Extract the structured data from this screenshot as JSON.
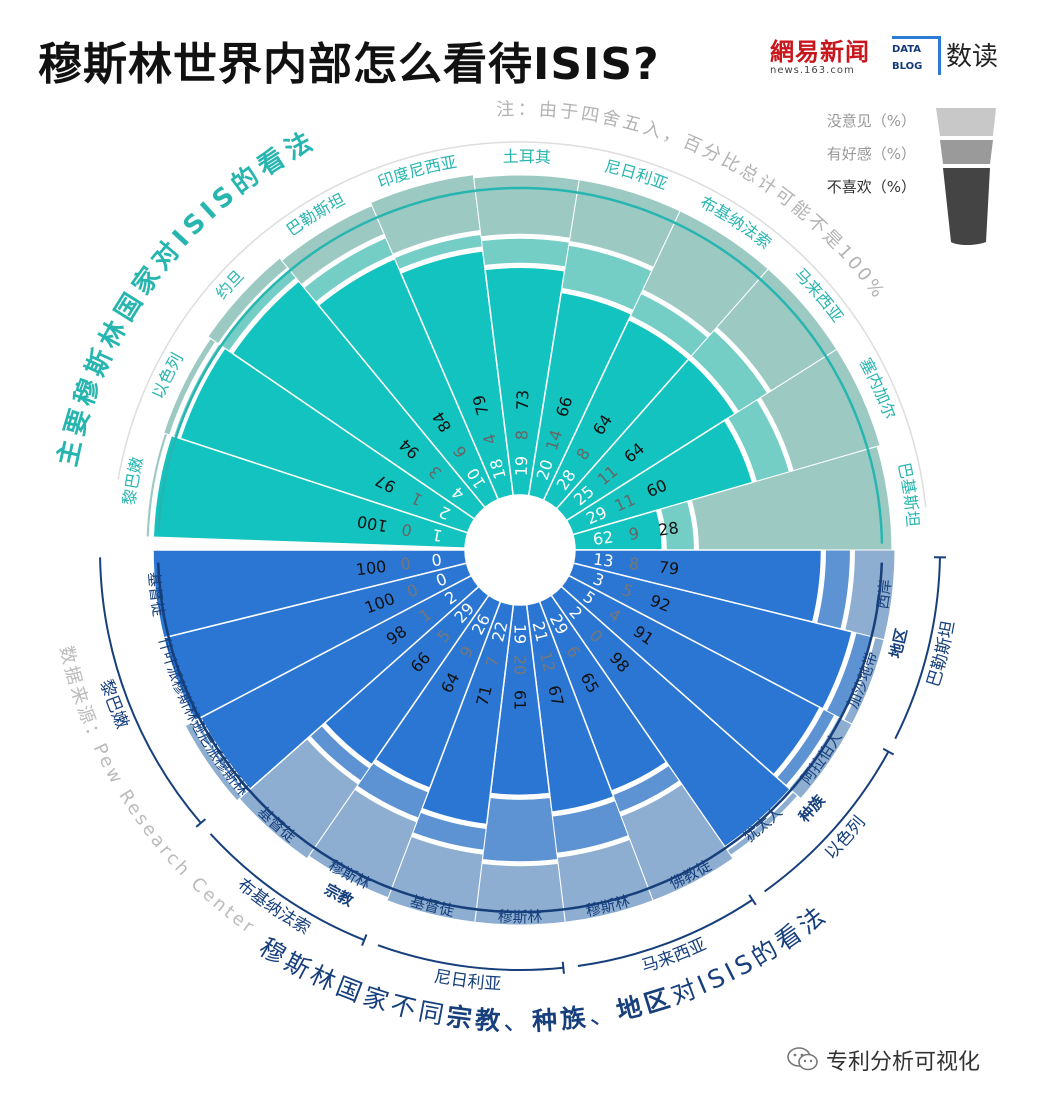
{
  "header": {
    "title": "穆斯林世界内部怎么看待ISIS?",
    "logo_netease": "網易新闻",
    "logo_netease_sub": "news.163.com",
    "logo_blog_line1": "DATA",
    "logo_blog_line2": "BLOG",
    "logo_dudu": "数读"
  },
  "watermark": "专利分析可视化",
  "chart_data": {
    "type": "radial-stacked-bar",
    "note": "注：由于四舍五入，百分比总计可能不是100%",
    "source": "数据来源：Pew Research Center",
    "legend": {
      "position": "top-right",
      "entries": [
        {
          "label": "没意见（%）",
          "color": "#c8c8c8"
        },
        {
          "label": "有好感（%）",
          "color": "#9a9a9a"
        },
        {
          "label": "不喜欢（%）",
          "color": "#444444"
        }
      ]
    },
    "colors": {
      "top_unfavorable": "#13c3bf",
      "top_favorable": "#74cec6",
      "top_noopinion": "#9ccac3",
      "bottom_unfavorable": "#2a76d2",
      "bottom_favorable": "#5d93d2",
      "bottom_noopinion": "#8eaed1",
      "top_arc": "#27b5b0",
      "bottom_arc": "#163f7c"
    },
    "top_group": {
      "title": "主要穆斯林国家对ISIS的看法",
      "countries": [
        {
          "name": "黎巴嫩",
          "unfavorable": 100,
          "favorable": 0,
          "no_opinion": 1
        },
        {
          "name": "以色列",
          "unfavorable": 97,
          "favorable": 1,
          "no_opinion": 2
        },
        {
          "name": "约旦",
          "unfavorable": 94,
          "favorable": 3,
          "no_opinion": 4
        },
        {
          "name": "巴勒斯坦",
          "unfavorable": 84,
          "favorable": 6,
          "no_opinion": 10
        },
        {
          "name": "印度尼西亚",
          "unfavorable": 79,
          "favorable": 4,
          "no_opinion": 18
        },
        {
          "name": "土耳其",
          "unfavorable": 73,
          "favorable": 8,
          "no_opinion": 19
        },
        {
          "name": "尼日利亚",
          "unfavorable": 66,
          "favorable": 14,
          "no_opinion": 20
        },
        {
          "name": "布基纳法索",
          "unfavorable": 64,
          "favorable": 8,
          "no_opinion": 28
        },
        {
          "name": "马来西亚",
          "unfavorable": 64,
          "favorable": 11,
          "no_opinion": 25
        },
        {
          "name": "塞内加尔",
          "unfavorable": 60,
          "favorable": 11,
          "no_opinion": 29
        },
        {
          "name": "巴基斯坦",
          "unfavorable": 28,
          "favorable": 9,
          "no_opinion": 62
        }
      ]
    },
    "bottom_group": {
      "title_parts": [
        "穆斯林国家不同",
        "宗教",
        "、",
        "种族",
        "、",
        "地区",
        "对ISIS的看法"
      ],
      "bars": [
        {
          "country": "黎巴嫩",
          "facet": "宗教",
          "label": "基督徒",
          "unfavorable": 100,
          "favorable": 0,
          "no_opinion": 0
        },
        {
          "country": "黎巴嫩",
          "facet": "宗教",
          "label": "什叶派穆斯林",
          "unfavorable": 100,
          "favorable": 0,
          "no_opinion": 0
        },
        {
          "country": "黎巴嫩",
          "facet": "宗教",
          "label": "逊尼派穆斯林",
          "unfavorable": 98,
          "favorable": 1,
          "no_opinion": 2
        },
        {
          "country": "布基纳法索",
          "facet": "宗教",
          "label": "基督徒",
          "unfavorable": 66,
          "favorable": 5,
          "no_opinion": 29
        },
        {
          "country": "布基纳法索",
          "facet": "宗教",
          "label": "穆斯林",
          "unfavorable": 64,
          "favorable": 9,
          "no_opinion": 26
        },
        {
          "country": "尼日利亚",
          "facet": "宗教",
          "label": "基督徒",
          "unfavorable": 71,
          "favorable": 7,
          "no_opinion": 22
        },
        {
          "country": "尼日利亚",
          "facet": "宗教",
          "label": "穆斯林",
          "unfavorable": 61,
          "favorable": 20,
          "no_opinion": 19
        },
        {
          "country": "马来西亚",
          "facet": "宗教",
          "label": "穆斯林",
          "unfavorable": 67,
          "favorable": 12,
          "no_opinion": 21
        },
        {
          "country": "马来西亚",
          "facet": "宗教",
          "label": "佛教徒",
          "unfavorable": 65,
          "favorable": 6,
          "no_opinion": 29
        },
        {
          "country": "以色列",
          "facet": "种族",
          "label": "犹太人",
          "unfavorable": 98,
          "favorable": 0,
          "no_opinion": 2
        },
        {
          "country": "以色列",
          "facet": "种族",
          "label": "阿拉伯人",
          "unfavorable": 91,
          "favorable": 4,
          "no_opinion": 5
        },
        {
          "country": "巴勒斯坦",
          "facet": "地区",
          "label": "加沙地带",
          "unfavorable": 92,
          "favorable": 5,
          "no_opinion": 3
        },
        {
          "country": "巴勒斯坦",
          "facet": "地区",
          "label": "西岸",
          "unfavorable": 79,
          "favorable": 8,
          "no_opinion": 13
        }
      ],
      "country_labels": [
        "黎巴嫩",
        "布基纳法索",
        "尼日利亚",
        "马来西亚",
        "以色列",
        "巴勒斯坦"
      ],
      "facet_labels": [
        "宗教",
        "种族",
        "地区"
      ]
    }
  }
}
